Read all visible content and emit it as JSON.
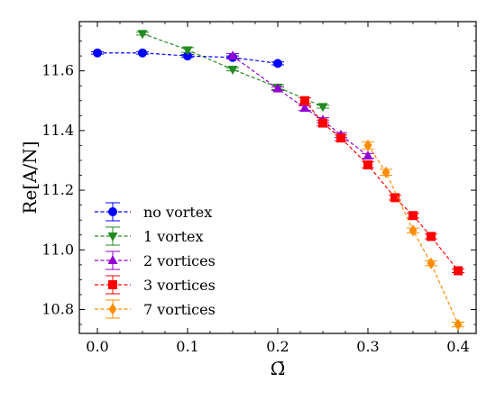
{
  "chart_data": {
    "type": "scatter",
    "xlabel": "Ω̄",
    "ylabel": "Re[A/N]",
    "xlim": [
      -0.02,
      0.42
    ],
    "ylim": [
      10.72,
      11.765
    ],
    "x_ticks": [
      0.0,
      0.1,
      0.2,
      0.3,
      0.4
    ],
    "x_tick_labels": [
      "0.0",
      "0.1",
      "0.2",
      "0.3",
      "0.4"
    ],
    "y_ticks": [
      10.8,
      11.0,
      11.2,
      11.4,
      11.6
    ],
    "y_tick_labels": [
      "10.8",
      "11.0",
      "11.2",
      "11.4",
      "11.6"
    ],
    "grid": false,
    "legend_position": "lower-left",
    "series": [
      {
        "name": "no vortex",
        "color": "#0000ff",
        "marker": "circle",
        "x": [
          0.0,
          0.05,
          0.1,
          0.15,
          0.2
        ],
        "y": [
          11.66,
          11.66,
          11.65,
          11.645,
          11.625
        ],
        "yerr": [
          0.004,
          0.004,
          0.005,
          0.005,
          0.005
        ]
      },
      {
        "name": "1 vortex",
        "color": "#228b22",
        "marker": "triangle-down",
        "x": [
          0.05,
          0.1,
          0.15,
          0.2,
          0.25
        ],
        "y": [
          11.725,
          11.67,
          11.605,
          11.545,
          11.48
        ],
        "yerr": [
          0.005,
          0.008,
          0.005,
          0.008,
          0.005
        ]
      },
      {
        "name": "2 vortices",
        "color": "#9400d3",
        "marker": "triangle-up",
        "x": [
          0.15,
          0.2,
          0.23,
          0.25,
          0.27,
          0.3
        ],
        "y": [
          11.65,
          11.54,
          11.475,
          11.435,
          11.385,
          11.315
        ],
        "yerr": [
          0.008,
          0.006,
          0.008,
          0.008,
          0.008,
          0.008
        ]
      },
      {
        "name": "3 vortices",
        "color": "#ff0000",
        "marker": "square",
        "x": [
          0.23,
          0.25,
          0.27,
          0.3,
          0.33,
          0.35,
          0.37,
          0.4
        ],
        "y": [
          11.5,
          11.425,
          11.375,
          11.285,
          11.175,
          11.115,
          11.045,
          10.93
        ],
        "yerr": [
          0.01,
          0.01,
          0.01,
          0.01,
          0.008,
          0.008,
          0.008,
          0.006
        ]
      },
      {
        "name": "7 vortices",
        "color": "#ff8c00",
        "marker": "diamond",
        "x": [
          0.3,
          0.32,
          0.35,
          0.37,
          0.4
        ],
        "y": [
          11.35,
          11.26,
          11.065,
          10.955,
          10.75
        ],
        "yerr": [
          0.012,
          0.01,
          0.008,
          0.008,
          0.008
        ]
      }
    ]
  }
}
